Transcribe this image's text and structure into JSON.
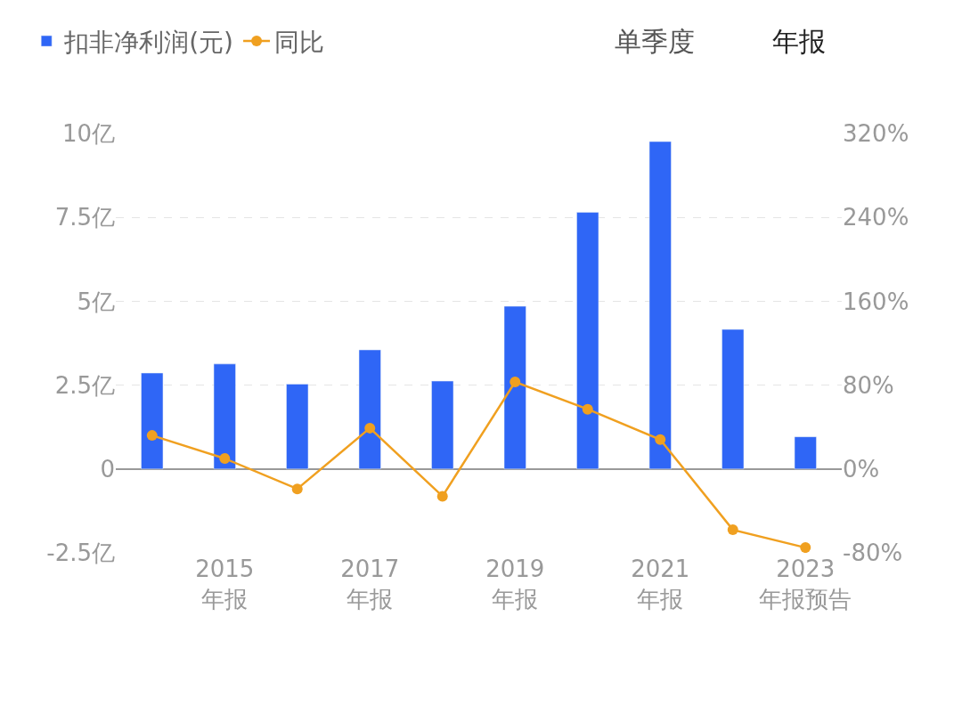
{
  "chart_data": {
    "type": "bar",
    "categories": [
      null,
      "2015\n年报",
      null,
      "2017\n年报",
      null,
      "2019\n年报",
      null,
      "2021\n年报",
      null,
      "2023\n年报预告"
    ],
    "series": [
      {
        "name": "扣非净利润(元)",
        "color": "#2f66f6",
        "values": [
          2.86,
          3.13,
          2.53,
          3.55,
          2.62,
          4.85,
          7.65,
          9.76,
          4.16,
          0.96
        ]
      },
      {
        "name": "同比",
        "type": "line",
        "axis": "y2",
        "color": "#f0a020",
        "marker": "circle",
        "values": [
          32,
          10,
          -19,
          39,
          -26,
          83,
          57,
          28,
          -58,
          -75
        ]
      }
    ],
    "ylim": [
      -2.5,
      10
    ],
    "yticks": [
      {
        "value": -2.5,
        "label": "-2.5亿"
      },
      {
        "value": 0,
        "label": "0"
      },
      {
        "value": 2.5,
        "label": "2.5亿"
      },
      {
        "value": 5,
        "label": "5亿"
      },
      {
        "value": 7.5,
        "label": "7.5亿"
      },
      {
        "value": 10,
        "label": "10亿"
      }
    ],
    "y2lim": [
      -80,
      320
    ],
    "y2ticks": [
      {
        "value": -80,
        "label": "-80%"
      },
      {
        "value": 0,
        "label": "0%"
      },
      {
        "value": 80,
        "label": "80%"
      },
      {
        "value": 160,
        "label": "160%"
      },
      {
        "value": 240,
        "label": "240%"
      },
      {
        "value": 320,
        "label": "320%"
      }
    ],
    "grid": "y",
    "legend": "top left",
    "annotations": [
      "单季度",
      "年报"
    ]
  }
}
